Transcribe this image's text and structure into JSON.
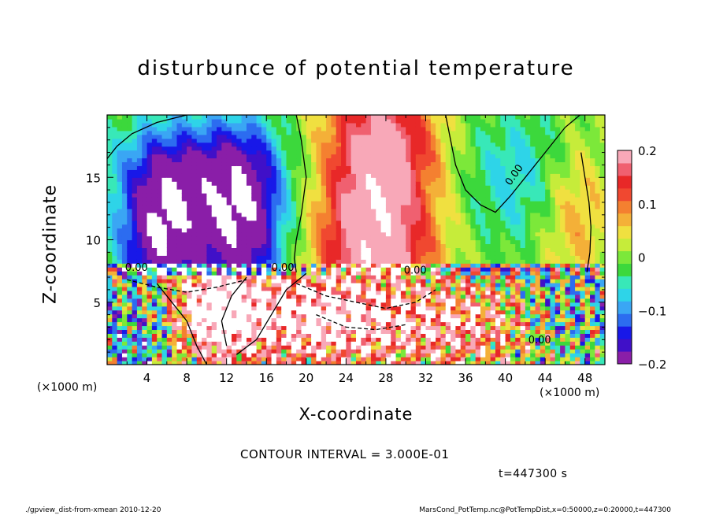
{
  "chart_data": {
    "type": "heatmap",
    "title": "disturbunce of potential temperature",
    "xlabel": "X-coordinate",
    "ylabel": "Z-coordinate",
    "x_unit": "(×1000 m)",
    "y_unit": "(×1000 m)",
    "xlim": [
      0,
      50
    ],
    "ylim": [
      0,
      20
    ],
    "x_ticks": [
      "4",
      "8",
      "12",
      "16",
      "20",
      "24",
      "28",
      "32",
      "36",
      "40",
      "44",
      "48"
    ],
    "y_ticks": [
      "5",
      "10",
      "15"
    ],
    "colorbar": {
      "range": [
        -0.2,
        0.2
      ],
      "tick_labels": [
        "0.2",
        "0.1",
        "0",
        "−0.1",
        "−0.2"
      ]
    },
    "contour_labels": [
      "0.00",
      "0.00",
      "0.00",
      "0.00",
      "0.00"
    ],
    "contour_interval_text": "CONTOUR INTERVAL = 3.000E-01",
    "time_text": "t=447300 s",
    "fields": [
      {
        "region": "upper layer z>7.5",
        "pattern": "negative anomaly columns at x=4-16, strong positive plume at x=22-34, near-zero trough at x=36-46"
      },
      {
        "region": "lower layer z<7.5",
        "pattern": "strongly mixed, saturated white regions at x=8-28, noisy positive/negative structures elsewhere"
      }
    ]
  },
  "footer": {
    "left": "./gpview_dist-from-xmean  2010-12-20",
    "right": "MarsCond_PotTemp.nc@PotTempDist,x=0:50000,z=0:20000,t=447300"
  },
  "colors": {
    "colorbar_stops": [
      "#8a1ea8",
      "#4010c8",
      "#1818e8",
      "#2c6cf0",
      "#3aa6f4",
      "#2ed4e8",
      "#38e8b8",
      "#3cd83c",
      "#7ce83a",
      "#c6ec3a",
      "#f0e040",
      "#f4b038",
      "#f48030",
      "#f04830",
      "#e82828",
      "#f06070",
      "#f8a8b8"
    ]
  }
}
